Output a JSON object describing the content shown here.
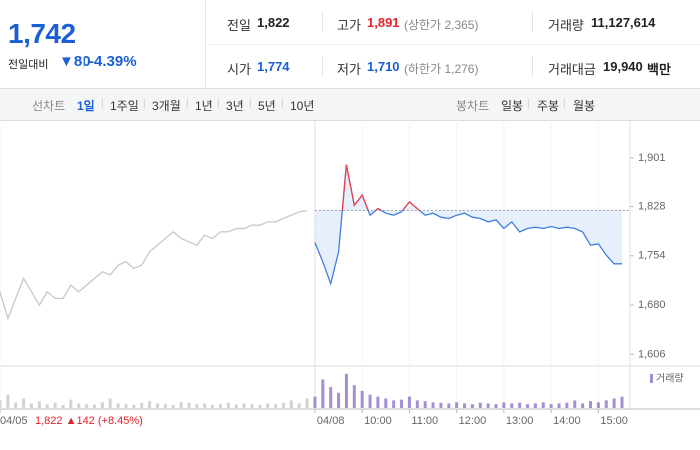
{
  "header": {
    "price": "1,742",
    "change_label": "전일대비",
    "change": "▼80",
    "change_rate": "-4.39%",
    "stats": [
      {
        "label": "전일",
        "value": "1,822"
      },
      {
        "label": "고가",
        "value": "1,891",
        "note": "(상한가 2,365)"
      },
      {
        "label": "거래량",
        "value": "11,127,614"
      },
      {
        "label": "시가",
        "value": "1,774"
      },
      {
        "label": "저가",
        "value": "1,710",
        "note": "(하한가 1,276)"
      },
      {
        "label": "거래대금",
        "value": "19,940",
        "unit": "백만"
      }
    ]
  },
  "tabs": {
    "line_label": "선차트",
    "line": [
      "1일",
      "1주일",
      "3개월",
      "1년",
      "3년",
      "5년",
      "10년"
    ],
    "candle_label": "봉차트",
    "candle": [
      "일봉",
      "주봉",
      "월봉"
    ]
  },
  "chart_data": {
    "type": "line",
    "categories": [
      "04/05",
      null,
      null,
      null,
      null,
      null,
      null,
      null,
      null,
      null,
      null,
      null,
      null,
      null,
      null,
      null,
      null,
      null,
      null,
      null,
      null,
      null,
      null,
      null,
      null,
      null,
      null,
      null,
      null,
      null,
      null,
      null,
      null,
      null,
      null,
      null,
      null,
      null,
      null,
      null,
      "04/08",
      null,
      null,
      null,
      null,
      null,
      "10:00",
      null,
      null,
      null,
      null,
      null,
      "11:00",
      null,
      null,
      null,
      null,
      null,
      "12:00",
      null,
      null,
      null,
      null,
      null,
      "13:00",
      null,
      null,
      null,
      null,
      null,
      "14:00",
      null,
      null,
      null,
      null,
      null,
      "15:00",
      null,
      null,
      null
    ],
    "series": [
      {
        "color": "#c8c8c8",
        "values": [
          1700,
          1660,
          1690,
          1720,
          1700,
          1680,
          1700,
          1690,
          1690,
          1710,
          1700,
          1710,
          1720,
          1730,
          1725,
          1740,
          1745,
          1735,
          1740,
          1760,
          1770,
          1780,
          1790,
          1780,
          1775,
          1770,
          1785,
          1780,
          1790,
          1790,
          1795,
          1795,
          1800,
          1800,
          1805,
          1805,
          1810,
          1815,
          1820,
          1822,
          null,
          null,
          null,
          null,
          null,
          null,
          null,
          null,
          null,
          null,
          null,
          null,
          null,
          null,
          null,
          null,
          null,
          null,
          null,
          null,
          null,
          null,
          null,
          null,
          null,
          null,
          null,
          null,
          null,
          null,
          null,
          null,
          null,
          null,
          null,
          null,
          null,
          null,
          null,
          null
        ]
      },
      {
        "color": "#3f7fe0",
        "up_color": "#f0424a",
        "values": [
          null,
          null,
          null,
          null,
          null,
          null,
          null,
          null,
          null,
          null,
          null,
          null,
          null,
          null,
          null,
          null,
          null,
          null,
          null,
          null,
          null,
          null,
          null,
          null,
          null,
          null,
          null,
          null,
          null,
          null,
          null,
          null,
          null,
          null,
          null,
          null,
          null,
          null,
          null,
          null,
          1774,
          1745,
          1712,
          1760,
          1891,
          1830,
          1845,
          1815,
          1825,
          1818,
          1815,
          1820,
          1835,
          1825,
          1815,
          1818,
          1812,
          1810,
          1815,
          1818,
          1812,
          1810,
          1805,
          1808,
          1795,
          1805,
          1790,
          1795,
          1797,
          1795,
          1798,
          1795,
          1797,
          1795,
          1790,
          1770,
          1772,
          1755,
          1742,
          1742
        ]
      }
    ],
    "reference_line": 1822,
    "annotation": "1,822 ▲142 (+8.45%)",
    "ylim": [
      1590,
      1943
    ],
    "yticks": [
      {
        "value": 1901,
        "label": "1,901"
      },
      {
        "value": 1828,
        "label": "1,828"
      },
      {
        "value": 1754,
        "label": "1,754"
      },
      {
        "value": 1680,
        "label": "1,680"
      },
      {
        "value": 1606,
        "label": "1,606"
      }
    ],
    "volume": {
      "ylim": [
        0,
        100
      ],
      "series": [
        {
          "color": "#d2d2d2",
          "values": [
            20,
            35,
            15,
            25,
            12,
            18,
            10,
            14,
            8,
            22,
            12,
            10,
            9,
            15,
            25,
            12,
            10,
            8,
            14,
            18,
            12,
            10,
            8,
            16,
            14,
            10,
            12,
            8,
            10,
            14,
            9,
            12,
            10,
            8,
            12,
            10,
            14,
            20,
            12,
            25,
            null,
            null,
            null,
            null,
            null,
            null,
            null,
            null,
            null,
            null,
            null,
            null,
            null,
            null,
            null,
            null,
            null,
            null,
            null,
            null,
            null,
            null,
            null,
            null,
            null,
            null,
            null,
            null,
            null,
            null,
            null,
            null,
            null,
            null,
            null,
            null,
            null,
            null,
            null,
            null
          ]
        },
        {
          "name": "거래량",
          "color": "#a48fd4",
          "values": [
            null,
            null,
            null,
            null,
            null,
            null,
            null,
            null,
            null,
            null,
            null,
            null,
            null,
            null,
            null,
            null,
            null,
            null,
            null,
            null,
            null,
            null,
            null,
            null,
            null,
            null,
            null,
            null,
            null,
            null,
            null,
            null,
            null,
            null,
            null,
            null,
            null,
            null,
            null,
            null,
            30,
            75,
            55,
            40,
            90,
            60,
            45,
            35,
            30,
            25,
            20,
            22,
            30,
            20,
            18,
            15,
            14,
            12,
            15,
            12,
            10,
            14,
            12,
            10,
            15,
            12,
            14,
            10,
            12,
            15,
            10,
            12,
            14,
            20,
            12,
            18,
            15,
            20,
            25,
            30
          ]
        }
      ]
    }
  }
}
